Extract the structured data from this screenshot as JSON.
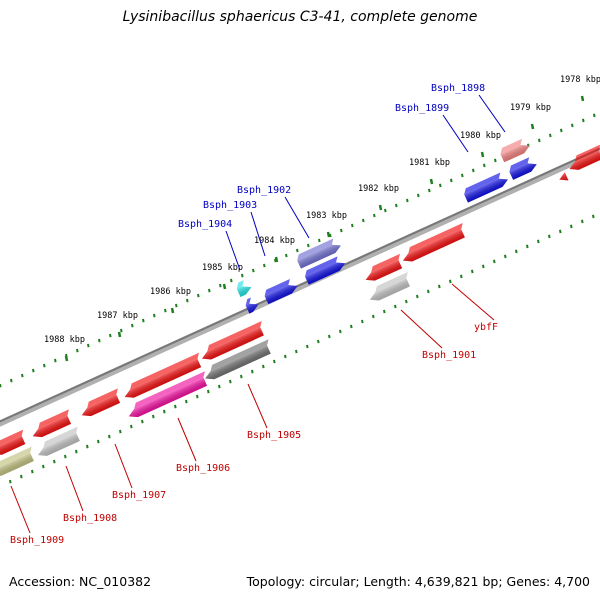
{
  "title": "Lysinibacillus sphaericus C3-41, complete genome",
  "footer": {
    "accession": "Accession: NC_010382",
    "summary": "Topology: circular; Length: 4,639,821 bp; Genes: 4,700"
  },
  "ruler": {
    "ticks": [
      {
        "label": "1978 kbp",
        "kbp": 1978
      },
      {
        "label": "1979 kbp",
        "kbp": 1979
      },
      {
        "label": "1980 kbp",
        "kbp": 1980
      },
      {
        "label": "1981 kbp",
        "kbp": 1981
      },
      {
        "label": "1982 kbp",
        "kbp": 1982
      },
      {
        "label": "1983 kbp",
        "kbp": 1983
      },
      {
        "label": "1984 kbp",
        "kbp": 1984
      },
      {
        "label": "1985 kbp",
        "kbp": 1985
      },
      {
        "label": "1986 kbp",
        "kbp": 1986
      },
      {
        "label": "1987 kbp",
        "kbp": 1987
      },
      {
        "label": "1988 kbp",
        "kbp": 1988
      }
    ]
  },
  "genes_outer": [
    {
      "label": "Bsph_1898",
      "color": "#f08080",
      "strand": "forward"
    },
    {
      "label": "Bsph_1899",
      "color": "#1010e0",
      "strand": "forward"
    },
    {
      "label": "Bsph_1902",
      "color": "#7070d0",
      "strand": "forward"
    },
    {
      "label": "Bsph_1903",
      "color": "#1010e0",
      "strand": "forward"
    },
    {
      "label": "Bsph_1904",
      "color": "#1010e0",
      "strand": "forward"
    },
    {
      "label": "",
      "color": "#20e0e0",
      "strand": "forward"
    }
  ],
  "genes_inner": [
    {
      "label": "ybfF",
      "color": "#f01010",
      "strand": "reverse"
    },
    {
      "label": "Bsph_1901",
      "color": "#c0c0c0",
      "strand": "reverse"
    },
    {
      "label": "Bsph_1905",
      "color": "#707070",
      "strand": "reverse"
    },
    {
      "label": "Bsph_1906",
      "color": "#f010a0",
      "strand": "reverse"
    },
    {
      "label": "Bsph_1907",
      "color": "#f01010",
      "strand": "reverse"
    },
    {
      "label": "Bsph_1908",
      "color": "#c0c0c0",
      "strand": "reverse"
    },
    {
      "label": "Bsph_1909",
      "color": "#c0c080",
      "strand": "reverse"
    }
  ],
  "colors": {
    "outer_label": "#0000c0",
    "inner_label": "#c00000",
    "ruler": "#207f20",
    "backbone": "#7f7f7f"
  }
}
